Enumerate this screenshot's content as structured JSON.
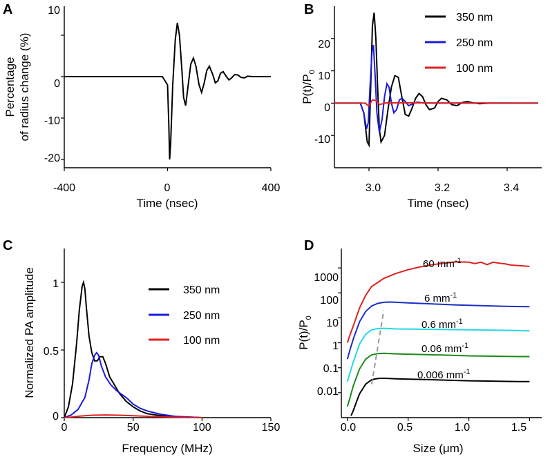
{
  "chart_data": [
    {
      "panel": "A",
      "type": "line",
      "xlabel": "Time (nsec)",
      "ylabel_line1": "Percentage",
      "ylabel_line2": "of radius change (%)",
      "xlim": [
        -400,
        400
      ],
      "ylim": [
        -22,
        17
      ],
      "xticks": [
        -400,
        0,
        400
      ],
      "yticks": [
        -20,
        -10,
        0,
        10
      ],
      "series": [
        {
          "name": "radius change",
          "color": "#000000",
          "x": [
            -400,
            -20,
            0,
            5,
            8,
            12,
            20,
            30,
            38,
            46,
            55,
            62,
            70,
            80,
            90,
            100,
            110,
            122,
            132,
            142,
            152,
            162,
            175,
            185,
            195,
            205,
            215,
            228,
            238,
            248,
            260,
            272,
            285,
            298,
            310,
            330,
            400
          ],
          "y": [
            0,
            0,
            -2,
            -12,
            -20,
            -16,
            -2,
            9,
            13,
            10,
            2,
            -5,
            -7,
            -2,
            3,
            4.5,
            2.5,
            -2,
            -3.8,
            -1.5,
            1.5,
            2.5,
            0.5,
            -1.5,
            -1,
            0.8,
            1.2,
            0,
            -0.8,
            -0.3,
            0.5,
            0.4,
            -0.2,
            -0.3,
            0.1,
            0,
            0
          ]
        }
      ]
    },
    {
      "panel": "B",
      "type": "line",
      "xlabel": "Time (nsec)",
      "ylabel_main": "P(t)/P",
      "ylabel_sub": "0",
      "xlim": [
        2.9,
        3.5
      ],
      "ylim": [
        -20,
        30
      ],
      "xticks": [
        3.0,
        3.2,
        3.4
      ],
      "xtick_labels": [
        "3.0",
        "3.2",
        "3.4"
      ],
      "yticks": [
        -10,
        0,
        10,
        20
      ],
      "series": [
        {
          "name": "350 nm",
          "color": "#000000",
          "x": [
            2.9,
            2.975,
            2.985,
            2.995,
            3.0,
            3.005,
            3.01,
            3.015,
            3.02,
            3.025,
            3.03,
            3.035,
            3.045,
            3.055,
            3.065,
            3.075,
            3.085,
            3.095,
            3.105,
            3.115,
            3.125,
            3.135,
            3.145,
            3.155,
            3.165,
            3.175,
            3.19,
            3.2,
            3.21,
            3.225,
            3.24,
            3.255,
            3.27,
            3.285,
            3.3,
            3.32,
            3.35,
            3.49
          ],
          "y": [
            0,
            0,
            -3,
            -12,
            -13,
            5,
            24,
            28,
            20,
            5,
            -8,
            -12,
            -10,
            -2,
            5,
            8.5,
            8,
            2,
            -3.5,
            -4,
            -1.5,
            1.5,
            3,
            2,
            -0.5,
            -2,
            -1.5,
            0.5,
            1.5,
            1,
            -0.5,
            -0.8,
            0.2,
            0.5,
            0.1,
            -0.2,
            0,
            0
          ]
        },
        {
          "name": "250 nm",
          "color": "#1a1adc",
          "x": [
            2.9,
            2.975,
            2.985,
            2.993,
            2.998,
            3.003,
            3.009,
            3.013,
            3.018,
            3.023,
            3.03,
            3.038,
            3.045,
            3.052,
            3.058,
            3.065,
            3.072,
            3.08,
            3.088,
            3.096,
            3.105,
            3.115,
            3.125,
            3.14,
            3.16,
            3.49
          ],
          "y": [
            0,
            0,
            -3,
            -8,
            -6,
            5,
            16,
            18,
            8,
            -3,
            -9,
            -5,
            2,
            6,
            5,
            0,
            -3,
            -2,
            1,
            1.5,
            0.5,
            -0.8,
            -0.3,
            0.3,
            0,
            0
          ]
        },
        {
          "name": "100 nm",
          "color": "#e02020",
          "x": [
            2.9,
            2.99,
            2.995,
            3.0,
            3.01,
            3.02,
            3.03,
            3.04,
            3.05,
            3.49
          ],
          "y": [
            0,
            0,
            -0.6,
            -0.8,
            1.0,
            0.8,
            -0.4,
            -0.2,
            0.1,
            0
          ]
        }
      ]
    },
    {
      "panel": "C",
      "type": "line",
      "xlabel": "Frequency (MHz)",
      "ylabel": "Normalized PA amplitude",
      "xlim": [
        0,
        150
      ],
      "ylim": [
        0,
        1.25
      ],
      "xticks": [
        0,
        50,
        100,
        150
      ],
      "yticks": [
        0,
        0.5,
        1
      ],
      "ytick_labels": [
        "0",
        "0.5",
        "1"
      ],
      "series": [
        {
          "name": "350 nm",
          "color": "#000000",
          "x": [
            0,
            3,
            6,
            9,
            11,
            13,
            14,
            15,
            16,
            18,
            20,
            22,
            24,
            26,
            28,
            30,
            33,
            36,
            40,
            45,
            50,
            55,
            60,
            70,
            80,
            90,
            100
          ],
          "y": [
            0,
            0.08,
            0.25,
            0.55,
            0.8,
            0.97,
            1.0,
            0.95,
            0.82,
            0.6,
            0.48,
            0.42,
            0.42,
            0.45,
            0.45,
            0.4,
            0.3,
            0.25,
            0.18,
            0.12,
            0.08,
            0.05,
            0.03,
            0.015,
            0.008,
            0.004,
            0
          ]
        },
        {
          "name": "250 nm",
          "color": "#1a1adc",
          "x": [
            0,
            5,
            10,
            15,
            18,
            20,
            22,
            23.5,
            25,
            27,
            30,
            34,
            38,
            42,
            46,
            50,
            55,
            60,
            70,
            80,
            90,
            100
          ],
          "y": [
            0,
            0.02,
            0.06,
            0.15,
            0.28,
            0.4,
            0.46,
            0.48,
            0.46,
            0.38,
            0.3,
            0.24,
            0.2,
            0.17,
            0.14,
            0.1,
            0.07,
            0.05,
            0.025,
            0.01,
            0.005,
            0
          ]
        },
        {
          "name": "100 nm",
          "color": "#e02020",
          "x": [
            0,
            5,
            10,
            20,
            30,
            40,
            50,
            60,
            70,
            80,
            100
          ],
          "y": [
            0,
            0.004,
            0.01,
            0.018,
            0.02,
            0.018,
            0.014,
            0.01,
            0.006,
            0.003,
            0
          ]
        }
      ]
    },
    {
      "panel": "D",
      "type": "line",
      "yscale": "log",
      "xlabel": "Size (μm)",
      "ylabel_main": "P(t)/P",
      "ylabel_sub": "0",
      "xlim": [
        -0.05,
        1.6
      ],
      "ylim": [
        0.001,
        6000
      ],
      "xticks": [
        0,
        0.5,
        1.0,
        1.5
      ],
      "xtick_labels": [
        "0.0",
        "0.5",
        "1.0",
        "1.5"
      ],
      "yticks": [
        0.01,
        0.1,
        1,
        10,
        100,
        1000
      ],
      "ytick_labels": [
        "0.01",
        "0.1",
        "1",
        "10",
        "100",
        "1000"
      ],
      "series": [
        {
          "name": "60 mm-1",
          "color": "#e02020",
          "x": [
            0.0,
            0.02,
            0.05,
            0.1,
            0.15,
            0.2,
            0.3,
            0.4,
            0.5,
            0.6,
            0.7,
            0.8,
            0.9,
            1.0,
            1.05,
            1.1,
            1.15,
            1.2,
            1.25,
            1.3,
            1.35,
            1.4,
            1.45,
            1.5
          ],
          "y": [
            1.0,
            2.0,
            5.0,
            25,
            80,
            180,
            380,
            600,
            850,
            1100,
            1350,
            1550,
            1750,
            1700,
            1500,
            1700,
            1350,
            1700,
            1550,
            1450,
            1300,
            1250,
            1200,
            1150
          ]
        },
        {
          "name": "6 mm-1",
          "color": "#1a2fc4",
          "x": [
            0.0,
            0.02,
            0.05,
            0.1,
            0.15,
            0.2,
            0.25,
            0.3,
            0.35,
            0.4,
            0.5,
            0.7,
            0.9,
            1.1,
            1.3,
            1.5
          ],
          "y": [
            0.22,
            0.5,
            1.5,
            7,
            18,
            30,
            38,
            42,
            43,
            42,
            40,
            36,
            33,
            31,
            29,
            28
          ]
        },
        {
          "name": "0.6 mm-1",
          "color": "#22d8e6",
          "x": [
            0.0,
            0.02,
            0.05,
            0.1,
            0.15,
            0.2,
            0.25,
            0.3,
            0.35,
            0.4,
            0.6,
            0.8,
            1.0,
            1.2,
            1.4,
            1.5
          ],
          "y": [
            0.028,
            0.06,
            0.18,
            0.9,
            2.2,
            3.3,
            3.7,
            3.8,
            3.7,
            3.6,
            3.5,
            3.4,
            3.3,
            3.2,
            3.1,
            3.0
          ]
        },
        {
          "name": "0.06 mm-1",
          "color": "#1a8a1a",
          "x": [
            0.0,
            0.02,
            0.05,
            0.1,
            0.15,
            0.2,
            0.25,
            0.3,
            0.4,
            0.6,
            0.8,
            1.0,
            1.2,
            1.4,
            1.5
          ],
          "y": [
            0.0028,
            0.006,
            0.02,
            0.09,
            0.22,
            0.33,
            0.37,
            0.38,
            0.36,
            0.34,
            0.32,
            0.3,
            0.29,
            0.28,
            0.28
          ]
        },
        {
          "name": "0.006 mm-1",
          "color": "#000000",
          "x": [
            0.03,
            0.05,
            0.08,
            0.1,
            0.15,
            0.2,
            0.25,
            0.3,
            0.4,
            0.6,
            0.8,
            1.0,
            1.2,
            1.4,
            1.5
          ],
          "y": [
            0.0012,
            0.002,
            0.005,
            0.009,
            0.022,
            0.033,
            0.037,
            0.038,
            0.036,
            0.034,
            0.032,
            0.03,
            0.029,
            0.028,
            0.028
          ]
        }
      ],
      "peak_trend": {
        "color": "#999999",
        "x": [
          0.2,
          0.3
        ],
        "y": [
          0.022,
          20
        ]
      },
      "annotations": [
        {
          "base": "60 mm",
          "sup": "-1"
        },
        {
          "base": "6 mm",
          "sup": "-1"
        },
        {
          "base": "0.6 mm",
          "sup": "-1"
        },
        {
          "base": "0.06 mm",
          "sup": "-1"
        },
        {
          "base": "0.006 mm",
          "sup": "-1"
        }
      ]
    }
  ]
}
